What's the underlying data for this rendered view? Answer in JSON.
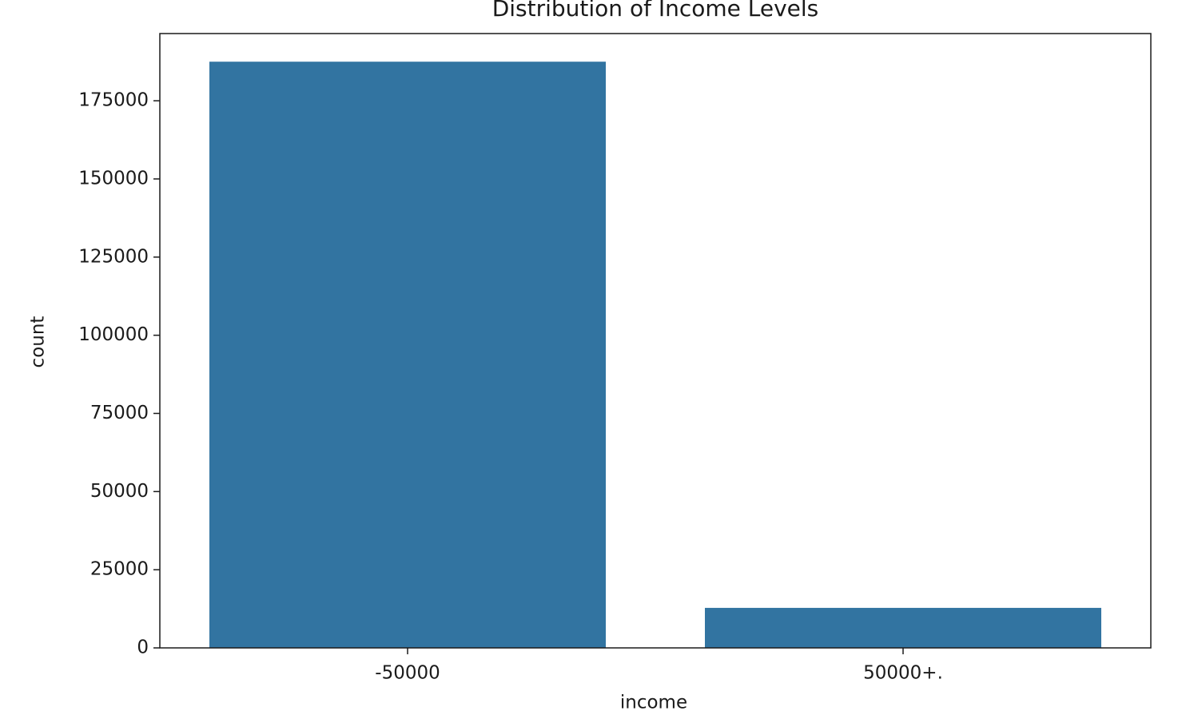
{
  "chart_data": {
    "type": "bar",
    "title": "Distribution of Income Levels",
    "x_label": "income",
    "y_label": "count",
    "categories": [
      "-50000",
      "50000+."
    ],
    "values": [
      187500,
      12800
    ],
    "color": "#3274a1",
    "ylim": [
      0,
      196500
    ],
    "yticks": [
      0,
      25000,
      50000,
      75000,
      100000,
      125000,
      150000,
      175000
    ],
    "grid": false
  }
}
